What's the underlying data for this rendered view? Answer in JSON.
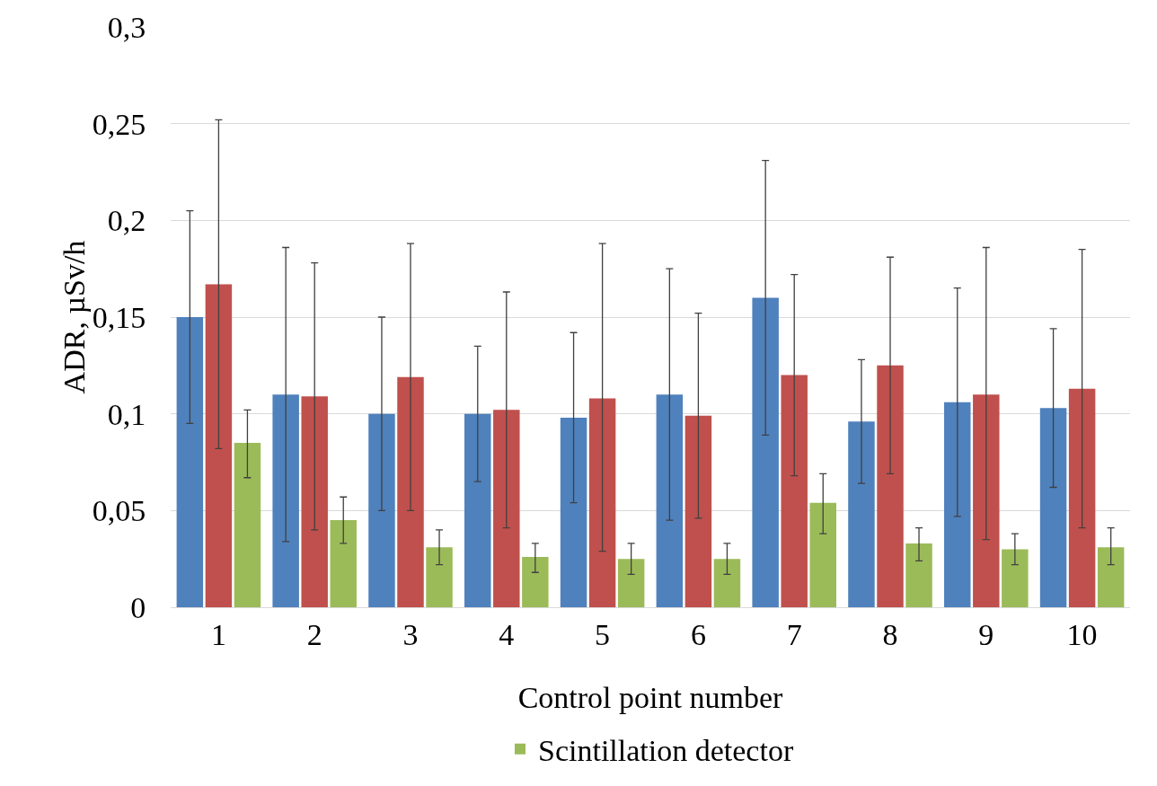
{
  "chart_data": {
    "type": "bar",
    "xlabel": "Control point number",
    "ylabel": "ADR, µSv/h",
    "categories": [
      "1",
      "2",
      "3",
      "4",
      "5",
      "6",
      "7",
      "8",
      "9",
      "10"
    ],
    "series": [
      {
        "color": "#4f81bd",
        "values": [
          0.15,
          0.11,
          0.1,
          0.1,
          0.098,
          0.11,
          0.16,
          0.096,
          0.106,
          0.103
        ],
        "errors": [
          [
            0.095,
            0.205
          ],
          [
            0.034,
            0.186
          ],
          [
            0.05,
            0.15
          ],
          [
            0.065,
            0.135
          ],
          [
            0.054,
            0.142
          ],
          [
            0.045,
            0.175
          ],
          [
            0.089,
            0.231
          ],
          [
            0.064,
            0.128
          ],
          [
            0.047,
            0.165
          ],
          [
            0.062,
            0.144
          ]
        ]
      },
      {
        "color": "#c0504d",
        "values": [
          0.167,
          0.109,
          0.119,
          0.102,
          0.108,
          0.099,
          0.12,
          0.125,
          0.11,
          0.113
        ],
        "errors": [
          [
            0.082,
            0.252
          ],
          [
            0.04,
            0.178
          ],
          [
            0.05,
            0.188
          ],
          [
            0.041,
            0.163
          ],
          [
            0.029,
            0.188
          ],
          [
            0.046,
            0.152
          ],
          [
            0.068,
            0.172
          ],
          [
            0.069,
            0.181
          ],
          [
            0.035,
            0.186
          ],
          [
            0.041,
            0.185
          ]
        ]
      },
      {
        "name": "Scintillation detector",
        "color": "#9bbb59",
        "values": [
          0.085,
          0.045,
          0.031,
          0.026,
          0.025,
          0.025,
          0.054,
          0.033,
          0.03,
          0.031
        ],
        "errors": [
          [
            0.067,
            0.102
          ],
          [
            0.033,
            0.057
          ],
          [
            0.022,
            0.04
          ],
          [
            0.018,
            0.033
          ],
          [
            0.017,
            0.033
          ],
          [
            0.017,
            0.033
          ],
          [
            0.038,
            0.069
          ],
          [
            0.024,
            0.041
          ],
          [
            0.022,
            0.038
          ],
          [
            0.022,
            0.041
          ]
        ]
      }
    ],
    "ylim": [
      0,
      0.3
    ],
    "yticks": [
      {
        "value": 0,
        "label": "0"
      },
      {
        "value": 0.05,
        "label": "0,05"
      },
      {
        "value": 0.1,
        "label": "0,1"
      },
      {
        "value": 0.15,
        "label": "0,15"
      },
      {
        "value": 0.2,
        "label": "0,2"
      },
      {
        "value": 0.25,
        "label": "0,25"
      },
      {
        "value": 0.3,
        "label": "0,3"
      }
    ],
    "grid": "y",
    "legend": "bottom"
  }
}
